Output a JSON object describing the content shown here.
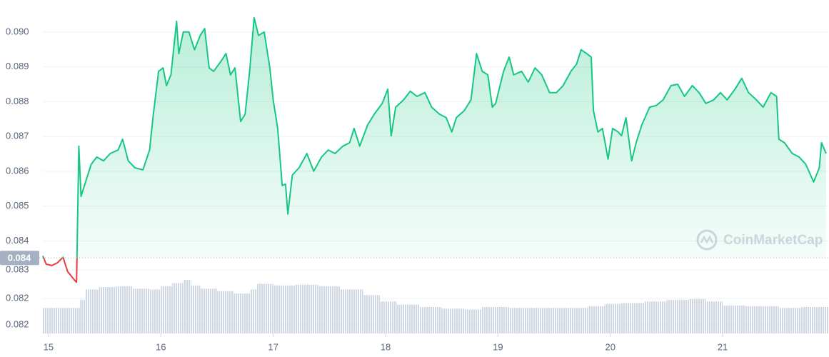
{
  "chart_data": {
    "type": "line",
    "watermark": "CoinMarketCap",
    "xlim": [
      14.95,
      21.94
    ],
    "xticks": [
      15,
      16,
      17,
      18,
      19,
      20,
      21
    ],
    "ylim": [
      0.08134,
      0.09092
    ],
    "yticks": [
      {
        "value": 0.09,
        "label": "0.090"
      },
      0.089,
      0.088,
      0.087,
      0.086,
      0.085,
      0.084,
      {
        "value": 0.08316,
        "label": "0.083"
      },
      {
        "value": 0.08234,
        "label": "0.082"
      },
      {
        "value": 0.08158,
        "label": "0.082"
      }
    ],
    "grid": true,
    "reference": {
      "value": 0.08351,
      "label": "0.084"
    },
    "up_color": "#16c784",
    "down_color": "#ea3943",
    "series": [
      {
        "x": [
          14.95,
          14.98,
          15.03,
          15.08,
          15.13,
          15.17,
          15.23,
          15.25,
          15.27,
          15.29,
          15.33,
          15.38,
          15.43,
          15.49,
          15.55,
          15.62,
          15.66,
          15.71,
          15.77,
          15.84,
          15.9,
          15.93,
          15.98,
          16.02,
          16.05,
          16.09,
          16.14,
          16.16,
          16.2,
          16.25,
          16.3,
          16.35,
          16.39,
          16.43,
          16.47,
          16.54,
          16.58,
          16.62,
          16.66,
          16.71,
          16.75,
          16.79,
          16.83,
          16.87,
          16.92,
          16.97,
          17.0,
          17.04,
          17.08,
          17.11,
          17.13,
          17.17,
          17.23,
          17.3,
          17.36,
          17.43,
          17.49,
          17.55,
          17.62,
          17.68,
          17.72,
          17.77,
          17.84,
          17.9,
          17.97,
          18.02,
          18.05,
          18.09,
          18.16,
          18.22,
          18.28,
          18.35,
          18.41,
          18.48,
          18.54,
          18.59,
          18.63,
          18.7,
          18.76,
          18.81,
          18.86,
          18.91,
          18.95,
          18.98,
          19.05,
          19.1,
          19.14,
          19.21,
          19.27,
          19.33,
          19.39,
          19.46,
          19.52,
          19.58,
          19.65,
          19.7,
          19.74,
          19.79,
          19.83,
          19.85,
          19.89,
          19.93,
          19.98,
          20.02,
          20.07,
          20.1,
          20.14,
          20.19,
          20.23,
          20.28,
          20.35,
          20.41,
          20.47,
          20.54,
          20.6,
          20.66,
          20.73,
          20.79,
          20.85,
          20.92,
          20.98,
          21.04,
          21.11,
          21.17,
          21.23,
          21.3,
          21.36,
          21.43,
          21.48,
          21.5,
          21.55,
          21.62,
          21.68,
          21.74,
          21.81,
          21.86,
          21.88,
          21.92
        ],
        "values": [
          0.08357,
          0.08333,
          0.08329,
          0.08337,
          0.08353,
          0.08312,
          0.08288,
          0.08281,
          0.08672,
          0.08528,
          0.08569,
          0.0862,
          0.08641,
          0.0863,
          0.08651,
          0.08661,
          0.08692,
          0.0863,
          0.0861,
          0.08604,
          0.08661,
          0.08754,
          0.08887,
          0.08897,
          0.08846,
          0.08877,
          0.09031,
          0.08938,
          0.09,
          0.09,
          0.08949,
          0.0899,
          0.0901,
          0.08897,
          0.08887,
          0.08918,
          0.08938,
          0.08877,
          0.08897,
          0.08743,
          0.08764,
          0.08887,
          0.09041,
          0.0899,
          0.09,
          0.08897,
          0.08805,
          0.08723,
          0.08559,
          0.08563,
          0.08477,
          0.08589,
          0.0861,
          0.08651,
          0.086,
          0.08641,
          0.08661,
          0.08651,
          0.08672,
          0.08682,
          0.08723,
          0.08672,
          0.08733,
          0.08764,
          0.08795,
          0.08836,
          0.08702,
          0.08784,
          0.08805,
          0.0883,
          0.08815,
          0.08826,
          0.08784,
          0.08764,
          0.08754,
          0.08713,
          0.08754,
          0.08774,
          0.08805,
          0.08938,
          0.08887,
          0.08877,
          0.08784,
          0.08795,
          0.08887,
          0.08928,
          0.08877,
          0.08887,
          0.08856,
          0.08897,
          0.08877,
          0.08826,
          0.08826,
          0.08846,
          0.08887,
          0.08908,
          0.08949,
          0.08938,
          0.08928,
          0.08774,
          0.08713,
          0.08723,
          0.08635,
          0.08723,
          0.08713,
          0.08702,
          0.08754,
          0.0863,
          0.08682,
          0.08733,
          0.08784,
          0.08789,
          0.08805,
          0.08846,
          0.0885,
          0.08815,
          0.08846,
          0.08826,
          0.08795,
          0.08805,
          0.08826,
          0.08805,
          0.08836,
          0.08867,
          0.08826,
          0.08805,
          0.08784,
          0.08826,
          0.08815,
          0.08692,
          0.08682,
          0.08651,
          0.08641,
          0.0862,
          0.08569,
          0.0861,
          0.08682,
          0.08651
        ]
      }
    ],
    "volume": {
      "color": "#cfd6e4",
      "x": [
        14.95,
        15.25,
        15.28,
        15.33,
        15.45,
        15.6,
        15.75,
        15.9,
        16.0,
        16.1,
        16.2,
        16.27,
        16.35,
        16.5,
        16.65,
        16.8,
        16.85,
        17.0,
        17.2,
        17.4,
        17.6,
        17.8,
        17.95,
        18.1,
        18.3,
        18.5,
        18.7,
        18.85,
        19.1,
        19.5,
        19.8,
        19.95,
        20.1,
        20.3,
        20.5,
        20.7,
        20.85,
        21.0,
        21.2,
        21.5,
        21.7
      ],
      "values": [
        32,
        32,
        42,
        55,
        58,
        59,
        56,
        55,
        59,
        63,
        67,
        60,
        56,
        53,
        50,
        55,
        62,
        60,
        61,
        59,
        55,
        48,
        40,
        36,
        33,
        31,
        30,
        33,
        32,
        32,
        34,
        37,
        38,
        40,
        42,
        43,
        40,
        35,
        34,
        32,
        33
      ]
    }
  }
}
